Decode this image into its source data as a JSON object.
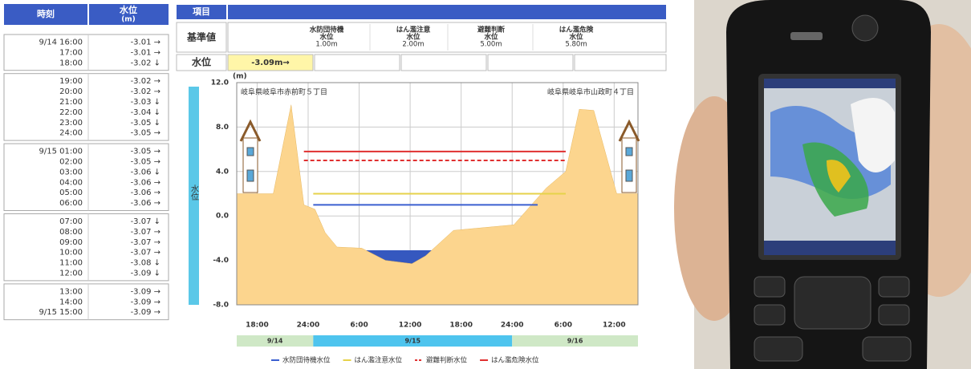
{
  "table": {
    "time_header": "時刻",
    "level_header": "水位",
    "unit_header": "(m)",
    "blocks": [
      [
        [
          "9/14 16:00",
          "-3.01 →"
        ],
        [
          "17:00",
          "-3.01 →"
        ],
        [
          "18:00",
          "-3.02 ↓"
        ]
      ],
      [
        [
          "19:00",
          "-3.02 →"
        ],
        [
          "20:00",
          "-3.02 →"
        ],
        [
          "21:00",
          "-3.03 ↓"
        ],
        [
          "22:00",
          "-3.04 ↓"
        ],
        [
          "23:00",
          "-3.05 ↓"
        ],
        [
          "24:00",
          "-3.05 →"
        ]
      ],
      [
        [
          "9/15 01:00",
          "-3.05 →"
        ],
        [
          "02:00",
          "-3.05 →"
        ],
        [
          "03:00",
          "-3.06 ↓"
        ],
        [
          "04:00",
          "-3.06 →"
        ],
        [
          "05:00",
          "-3.06 →"
        ],
        [
          "06:00",
          "-3.06 →"
        ]
      ],
      [
        [
          "07:00",
          "-3.07 ↓"
        ],
        [
          "08:00",
          "-3.07 →"
        ],
        [
          "09:00",
          "-3.07 →"
        ],
        [
          "10:00",
          "-3.07 →"
        ],
        [
          "11:00",
          "-3.08 ↓"
        ],
        [
          "12:00",
          "-3.09 ↓"
        ]
      ],
      [
        [
          "13:00",
          "-3.09 →"
        ],
        [
          "14:00",
          "-3.09 →"
        ],
        [
          "9/15 15:00",
          "-3.09 →"
        ]
      ]
    ]
  },
  "item_table": {
    "header": "項目",
    "standard_label": "基準値",
    "level_label": "水位",
    "level_value": "-3.09m→",
    "standards": [
      {
        "name": "水防団待機",
        "sub": "水位",
        "value": "1.00m",
        "color": "#1a3aa8"
      },
      {
        "name": "はん濫注意",
        "sub": "水位",
        "value": "2.00m",
        "color": "#e8901c"
      },
      {
        "name": "避難判断",
        "sub": "水位",
        "value": "5.00m",
        "color": "#d81c1c"
      },
      {
        "name": "はん濫危険",
        "sub": "水位",
        "value": "5.80m",
        "color": "#d81c1c"
      }
    ]
  },
  "chart_data": {
    "type": "area",
    "unit_label": "(m)",
    "axis_title": "水位",
    "locations": [
      "岐阜県岐阜市赤前町５丁目",
      "岐阜県岐阜市山政町４丁目"
    ],
    "xlim": [
      15.6,
      62.8
    ],
    "ylim": [
      -8,
      12
    ],
    "yticks": [
      {
        "value": 12,
        "label": "12.0"
      },
      {
        "value": 8,
        "label": "8.0"
      },
      {
        "value": 4,
        "label": "4.0"
      },
      {
        "value": 0,
        "label": "0.0"
      },
      {
        "value": -4,
        "label": "-4.0"
      },
      {
        "value": -8,
        "label": "-8.0"
      }
    ],
    "xticks": [
      {
        "value": 18,
        "label": "18:00"
      },
      {
        "value": 24,
        "label": "24:00"
      },
      {
        "value": 30,
        "label": "6:00"
      },
      {
        "value": 36,
        "label": "12:00"
      },
      {
        "value": 42,
        "label": "18:00"
      },
      {
        "value": 48,
        "label": "24:00"
      },
      {
        "value": 54,
        "label": "6:00"
      },
      {
        "value": 60,
        "label": "12:00"
      }
    ],
    "grid": true,
    "ground": {
      "color": "#fcd58e",
      "x": [
        15.6,
        19.9,
        22.0,
        23.5,
        24.8,
        26.0,
        27.4,
        30.3,
        33.1,
        36.2,
        37.8,
        41.1,
        48.2,
        52.0,
        54.3,
        55.9,
        57.6,
        60.3,
        62.8
      ],
      "values": [
        2.0,
        2.0,
        10.0,
        1.0,
        0.6,
        -1.5,
        -2.8,
        -2.9,
        -4.0,
        -4.3,
        -3.6,
        -1.3,
        -0.8,
        2.5,
        4.0,
        9.6,
        9.5,
        2.0,
        2.0
      ]
    },
    "water": {
      "color": "#3558bf",
      "value": -3.09
    },
    "series": [
      {
        "name": "水防団待機水位",
        "color": "#3b5fd0",
        "dash": false,
        "x": [
          24.6,
          51.0
        ],
        "values": [
          1.0,
          1.0
        ]
      },
      {
        "name": "はん濫注意水位",
        "color": "#e6d24a",
        "dash": false,
        "x": [
          24.6,
          54.3
        ],
        "values": [
          2.0,
          2.0
        ]
      },
      {
        "name": "避難判断水位",
        "color": "#e03030",
        "dash": true,
        "x": [
          23.5,
          54.3
        ],
        "values": [
          5.0,
          5.0
        ]
      },
      {
        "name": "はん濫危険水位",
        "color": "#e03030",
        "dash": false,
        "x": [
          23.5,
          54.3
        ],
        "values": [
          5.8,
          5.8
        ]
      }
    ],
    "dates": [
      {
        "label": "9/14",
        "start": 15.6,
        "end": 24.6,
        "color": "#cfe8c6"
      },
      {
        "label": "9/15",
        "start": 24.6,
        "end": 48.0,
        "color": "#4ec4ee"
      },
      {
        "label": "9/16",
        "start": 48.0,
        "end": 62.8,
        "color": "#cfe8c6"
      }
    ]
  }
}
